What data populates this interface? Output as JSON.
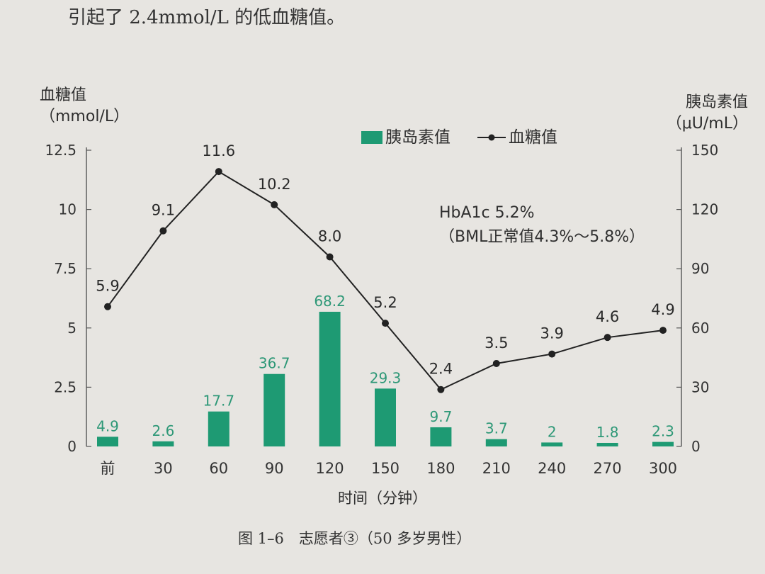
{
  "intro_text": "引起了 2.4mmol/L 的低血糖值。",
  "caption": "图 1–6　志愿者③（50 多岁男性）",
  "annotation": {
    "line1": "HbA1c 5.2%",
    "line2": "（BML正常值4.3%～5.8%）"
  },
  "colors": {
    "bar": "#1e9a73",
    "line": "#222222",
    "bar_label": "#2e9877"
  },
  "chart_data": {
    "type": "bar",
    "categories": [
      "前",
      "30",
      "60",
      "90",
      "120",
      "150",
      "180",
      "210",
      "240",
      "270",
      "300"
    ],
    "xlabel": "时间（分钟）",
    "left_axis": {
      "label_line1": "血糖值",
      "label_line2": "（mmol/L）",
      "ylim": [
        0,
        12.5
      ],
      "ticks": [
        "0",
        "2.5",
        "5",
        "7.5",
        "10",
        "12.5"
      ]
    },
    "right_axis": {
      "label_line1": "胰岛素值",
      "label_line2": "（μU/mL）",
      "ylim": [
        0,
        150
      ],
      "ticks": [
        "0",
        "30",
        "60",
        "90",
        "120",
        "150"
      ]
    },
    "legend_position": "top-center",
    "series": [
      {
        "name": "胰岛素值",
        "type": "bar",
        "axis": "right",
        "values": [
          4.9,
          2.6,
          17.7,
          36.7,
          68.2,
          29.3,
          9.7,
          3.7,
          2,
          1.8,
          2.3
        ],
        "labels": [
          "4.9",
          "2.6",
          "17.7",
          "36.7",
          "68.2",
          "29.3",
          "9.7",
          "3.7",
          "2",
          "1.8",
          "2.3"
        ]
      },
      {
        "name": "血糖值",
        "type": "line",
        "axis": "left",
        "values": [
          5.9,
          9.1,
          11.6,
          10.2,
          8.0,
          5.2,
          2.4,
          3.5,
          3.9,
          4.6,
          4.9
        ],
        "labels": [
          "5.9",
          "9.1",
          "11.6",
          "10.2",
          "8.0",
          "5.2",
          "2.4",
          "3.5",
          "3.9",
          "4.6",
          "4.9"
        ]
      }
    ]
  }
}
